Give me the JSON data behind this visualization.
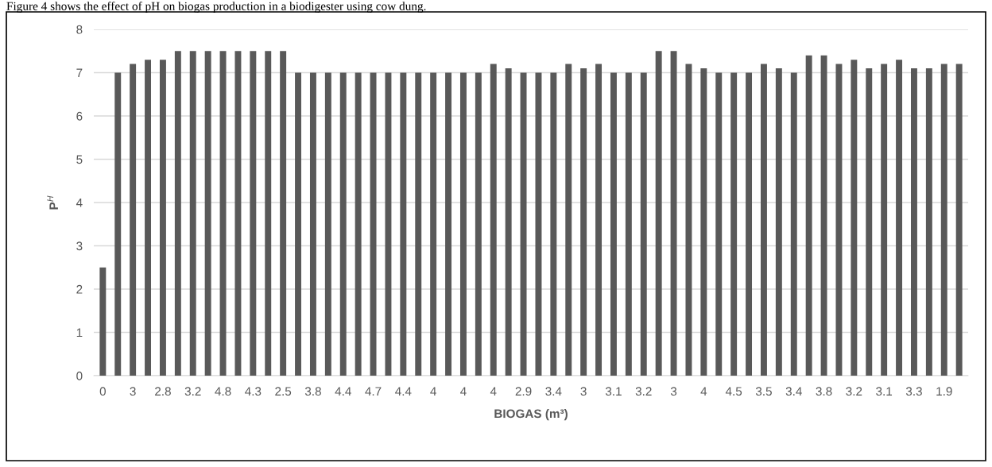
{
  "chart_data": {
    "type": "bar",
    "annotations": [
      "Figure 4 shows the effect of pH on biogas production in a biodigester using cow dung."
    ],
    "xlabel": "BIOGAS (m³)",
    "ylabel": "P$^{H}$",
    "categories": [
      "0",
      null,
      "3",
      null,
      "2.8",
      null,
      "3.2",
      null,
      "4.8",
      null,
      "4.3",
      null,
      "2.5",
      null,
      "3.8",
      null,
      "4.4",
      null,
      "4.7",
      null,
      "4.4",
      null,
      "4",
      null,
      "4",
      null,
      "4",
      null,
      "2.9",
      null,
      "3.4",
      null,
      "3",
      null,
      "3.1",
      null,
      "3.2",
      null,
      "3",
      null,
      "4",
      null,
      "4.5",
      null,
      "3.5",
      null,
      "3.4",
      null,
      "3.8",
      null,
      "3.2",
      null,
      "3.1",
      null,
      "3.3",
      null,
      "1.9",
      null
    ],
    "values": [
      2.5,
      7,
      7.2,
      7.3,
      7.3,
      7.5,
      7.5,
      7.5,
      7.5,
      7.5,
      7.5,
      7.5,
      7.5,
      7,
      7,
      7,
      7,
      7,
      7,
      7,
      7,
      7,
      7,
      7,
      7,
      7,
      7.2,
      7.1,
      7,
      7,
      7,
      7.2,
      7.1,
      7.2,
      7,
      7,
      7,
      7.5,
      7.5,
      7.2,
      7.1,
      7,
      7,
      7,
      7.2,
      7.1,
      7,
      7.4,
      7.4,
      7.2,
      7.3,
      7.1,
      7.2,
      7.3,
      7.1,
      7.1,
      7.2,
      7.2
    ],
    "color": "#595959",
    "ylim": [
      0,
      8
    ],
    "yticks": [
      0,
      1,
      2,
      3,
      4,
      5,
      6,
      7,
      8
    ],
    "grid": "y"
  }
}
